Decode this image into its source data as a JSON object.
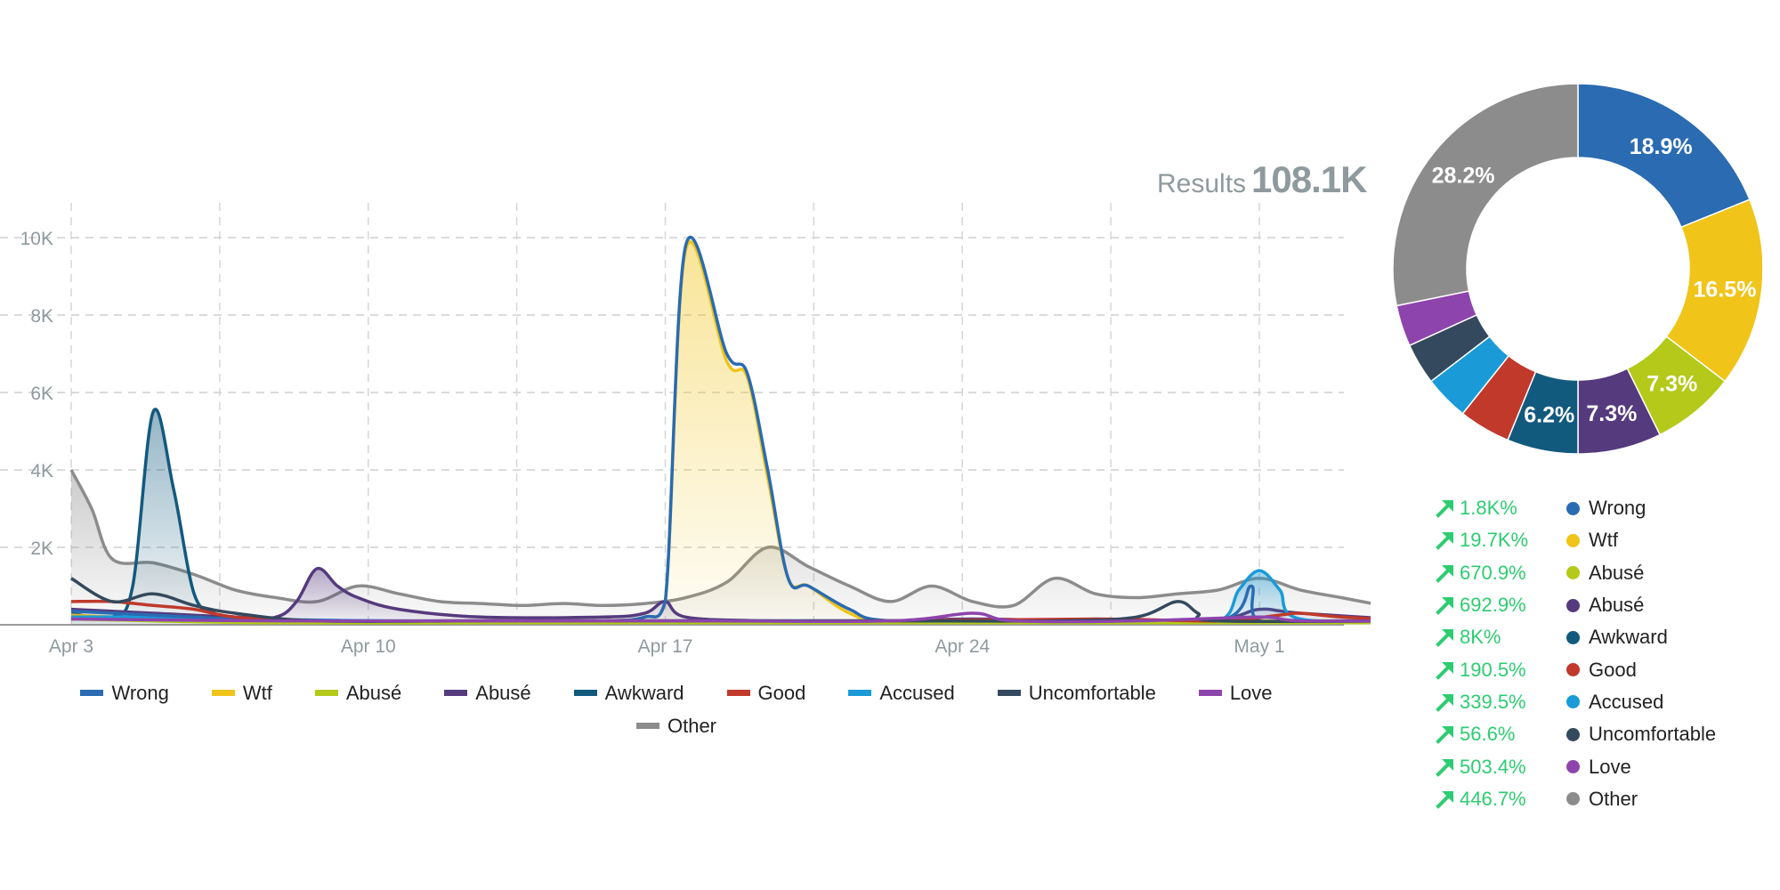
{
  "results": {
    "label": "Results",
    "value": "108.1K"
  },
  "chart_data": [
    {
      "type": "area",
      "x_ticks": [
        "Apr 3",
        "Apr 10",
        "Apr 17",
        "Apr 24",
        "May 1"
      ],
      "y_ticks": [
        "2K",
        "4K",
        "6K",
        "8K",
        "10K"
      ],
      "ylim": [
        0,
        11000
      ],
      "grid": true,
      "legend_position": "bottom",
      "series": [
        {
          "name": "Wrong",
          "color": "#2a6bb2",
          "fill": false,
          "points": [
            [
              0,
              350
            ],
            [
              1,
              300
            ],
            [
              2,
              250
            ],
            [
              3,
              200
            ],
            [
              4,
              150
            ],
            [
              7,
              100
            ],
            [
              10,
              100
            ],
            [
              13,
              100
            ],
            [
              14,
              200
            ],
            [
              14.5,
              600
            ],
            [
              15,
              9800
            ],
            [
              16,
              7000
            ],
            [
              16.5,
              6500
            ],
            [
              17,
              4000
            ],
            [
              17.5,
              1200
            ],
            [
              18,
              1000
            ],
            [
              19,
              400
            ],
            [
              20,
              100
            ],
            [
              24,
              100
            ],
            [
              28,
              100
            ],
            [
              28.8,
              1000
            ],
            [
              29,
              100
            ],
            [
              31,
              100
            ],
            [
              33,
              100
            ]
          ]
        },
        {
          "name": "Wtf",
          "color": "#f0c419",
          "fill": true,
          "points": [
            [
              0,
              250
            ],
            [
              1,
              200
            ],
            [
              2,
              150
            ],
            [
              3,
              100
            ],
            [
              7,
              100
            ],
            [
              10,
              100
            ],
            [
              13,
              100
            ],
            [
              14,
              200
            ],
            [
              14.5,
              600
            ],
            [
              15,
              9700
            ],
            [
              16,
              6800
            ],
            [
              16.5,
              6400
            ],
            [
              17,
              3800
            ],
            [
              17.5,
              1200
            ],
            [
              18,
              1000
            ],
            [
              19,
              300
            ],
            [
              20,
              100
            ],
            [
              24,
              100
            ],
            [
              28,
              100
            ],
            [
              33,
              100
            ]
          ]
        },
        {
          "name": "Abusé",
          "color": "#b4c919",
          "fill": false,
          "points": [
            [
              0,
              150
            ],
            [
              2,
              100
            ],
            [
              5,
              50
            ],
            [
              10,
              50
            ],
            [
              15,
              50
            ],
            [
              20,
              50
            ],
            [
              25,
              50
            ],
            [
              30,
              50
            ],
            [
              33,
              50
            ]
          ]
        },
        {
          "name": "Abusé",
          "color": "#553a7e",
          "fill": true,
          "points": [
            [
              0,
              400
            ],
            [
              2,
              300
            ],
            [
              4,
              200
            ],
            [
              5,
              200
            ],
            [
              5.5,
              600
            ],
            [
              6,
              1450
            ],
            [
              6.5,
              1000
            ],
            [
              7,
              700
            ],
            [
              8,
              400
            ],
            [
              10,
              200
            ],
            [
              13,
              200
            ],
            [
              14,
              300
            ],
            [
              14.5,
              600
            ],
            [
              15,
              200
            ],
            [
              17,
              100
            ],
            [
              20,
              100
            ],
            [
              22,
              150
            ],
            [
              25,
              100
            ],
            [
              28,
              150
            ],
            [
              29,
              400
            ],
            [
              30,
              300
            ],
            [
              33,
              100
            ]
          ]
        },
        {
          "name": "Awkward",
          "color": "#12597e",
          "fill": true,
          "points": [
            [
              0,
              300
            ],
            [
              1,
              200
            ],
            [
              1.5,
              1000
            ],
            [
              2,
              5500
            ],
            [
              2.5,
              3500
            ],
            [
              3,
              800
            ],
            [
              3.5,
              300
            ],
            [
              4,
              200
            ],
            [
              6,
              100
            ],
            [
              10,
              100
            ],
            [
              14,
              100
            ],
            [
              20,
              100
            ],
            [
              25,
              100
            ],
            [
              30,
              100
            ],
            [
              33,
              100
            ]
          ]
        },
        {
          "name": "Good",
          "color": "#c0392b",
          "fill": false,
          "points": [
            [
              0,
              600
            ],
            [
              1,
              600
            ],
            [
              2,
              500
            ],
            [
              3,
              400
            ],
            [
              4,
              200
            ],
            [
              6,
              100
            ],
            [
              10,
              100
            ],
            [
              14,
              100
            ],
            [
              20,
              100
            ],
            [
              25,
              150
            ],
            [
              28,
              100
            ],
            [
              29.5,
              250
            ],
            [
              30,
              300
            ],
            [
              31,
              200
            ],
            [
              33,
              100
            ]
          ]
        },
        {
          "name": "Accused",
          "color": "#1a9bd7",
          "fill": true,
          "points": [
            [
              0,
              200
            ],
            [
              2,
              200
            ],
            [
              4,
              150
            ],
            [
              8,
              100
            ],
            [
              12,
              100
            ],
            [
              16,
              100
            ],
            [
              20,
              100
            ],
            [
              24,
              100
            ],
            [
              25,
              150
            ],
            [
              26,
              100
            ],
            [
              28,
              100
            ],
            [
              28.5,
              900
            ],
            [
              29,
              1400
            ],
            [
              29.5,
              900
            ],
            [
              30,
              150
            ],
            [
              33,
              100
            ]
          ]
        },
        {
          "name": "Uncomfortable",
          "color": "#34495e",
          "fill": false,
          "points": [
            [
              0,
              1200
            ],
            [
              1,
              600
            ],
            [
              2,
              800
            ],
            [
              3,
              500
            ],
            [
              4,
              300
            ],
            [
              6,
              100
            ],
            [
              10,
              100
            ],
            [
              14,
              100
            ],
            [
              20,
              100
            ],
            [
              24,
              100
            ],
            [
              26,
              200
            ],
            [
              27,
              600
            ],
            [
              27.5,
              300
            ],
            [
              28,
              100
            ],
            [
              33,
              100
            ]
          ]
        },
        {
          "name": "Love",
          "color": "#8e44ad",
          "fill": false,
          "points": [
            [
              0,
              150
            ],
            [
              5,
              100
            ],
            [
              10,
              100
            ],
            [
              15,
              100
            ],
            [
              20,
              100
            ],
            [
              22,
              300
            ],
            [
              23,
              100
            ],
            [
              26,
              100
            ],
            [
              29,
              200
            ],
            [
              30,
              100
            ],
            [
              33,
              100
            ]
          ]
        },
        {
          "name": "Other",
          "color": "#8c8c8c",
          "fill": true,
          "points": [
            [
              0,
              4000
            ],
            [
              0.5,
              3000
            ],
            [
              1,
              1700
            ],
            [
              2,
              1600
            ],
            [
              3,
              1300
            ],
            [
              4,
              900
            ],
            [
              5,
              700
            ],
            [
              6,
              600
            ],
            [
              7,
              1000
            ],
            [
              8,
              800
            ],
            [
              9,
              600
            ],
            [
              10,
              550
            ],
            [
              11,
              500
            ],
            [
              12,
              550
            ],
            [
              13,
              500
            ],
            [
              14,
              550
            ],
            [
              15,
              700
            ],
            [
              16,
              1100
            ],
            [
              17,
              2000
            ],
            [
              18,
              1500
            ],
            [
              19,
              1000
            ],
            [
              20,
              600
            ],
            [
              21,
              1000
            ],
            [
              22,
              600
            ],
            [
              23,
              500
            ],
            [
              24,
              1200
            ],
            [
              25,
              800
            ],
            [
              26,
              700
            ],
            [
              27,
              800
            ],
            [
              28,
              900
            ],
            [
              29,
              1200
            ],
            [
              30,
              900
            ],
            [
              31,
              700
            ],
            [
              32,
              500
            ],
            [
              33,
              300
            ]
          ]
        }
      ]
    },
    {
      "type": "pie",
      "donut": true,
      "slices": [
        {
          "name": "Wrong",
          "value": 18.9,
          "color": "#2a6bb2",
          "label": "18.9%"
        },
        {
          "name": "Wtf",
          "value": 16.5,
          "color": "#f0c419",
          "label": "16.5%"
        },
        {
          "name": "Abusé",
          "value": 7.3,
          "color": "#b4c919",
          "label": "7.3%"
        },
        {
          "name": "Abusé",
          "value": 7.3,
          "color": "#553a7e",
          "label": "7.3%"
        },
        {
          "name": "Awkward",
          "value": 6.2,
          "color": "#12597e",
          "label": "6.2%"
        },
        {
          "name": "Good",
          "value": 4.5,
          "color": "#c0392b",
          "label": ""
        },
        {
          "name": "Accused",
          "value": 3.9,
          "color": "#1a9bd7",
          "label": ""
        },
        {
          "name": "Uncomfortable",
          "value": 3.6,
          "color": "#34495e",
          "label": ""
        },
        {
          "name": "Love",
          "value": 3.6,
          "color": "#8e44ad",
          "label": ""
        },
        {
          "name": "Other",
          "value": 28.2,
          "color": "#8c8c8c",
          "label": "28.2%"
        }
      ]
    }
  ],
  "changes": [
    {
      "value": "1.8K%",
      "name": "Wrong",
      "color": "#2a6bb2"
    },
    {
      "value": "19.7K%",
      "name": "Wtf",
      "color": "#f0c419"
    },
    {
      "value": "670.9%",
      "name": "Abusé",
      "color": "#b4c919"
    },
    {
      "value": "692.9%",
      "name": "Abusé",
      "color": "#553a7e"
    },
    {
      "value": "8K%",
      "name": "Awkward",
      "color": "#12597e"
    },
    {
      "value": "190.5%",
      "name": "Good",
      "color": "#c0392b"
    },
    {
      "value": "339.5%",
      "name": "Accused",
      "color": "#1a9bd7"
    },
    {
      "value": "56.6%",
      "name": "Uncomfortable",
      "color": "#34495e"
    },
    {
      "value": "503.4%",
      "name": "Love",
      "color": "#8e44ad"
    },
    {
      "value": "446.7%",
      "name": "Other",
      "color": "#8c8c8c"
    }
  ],
  "colors": {
    "trend_up": "#2ecc71",
    "axis_text": "#8f9a9e"
  }
}
